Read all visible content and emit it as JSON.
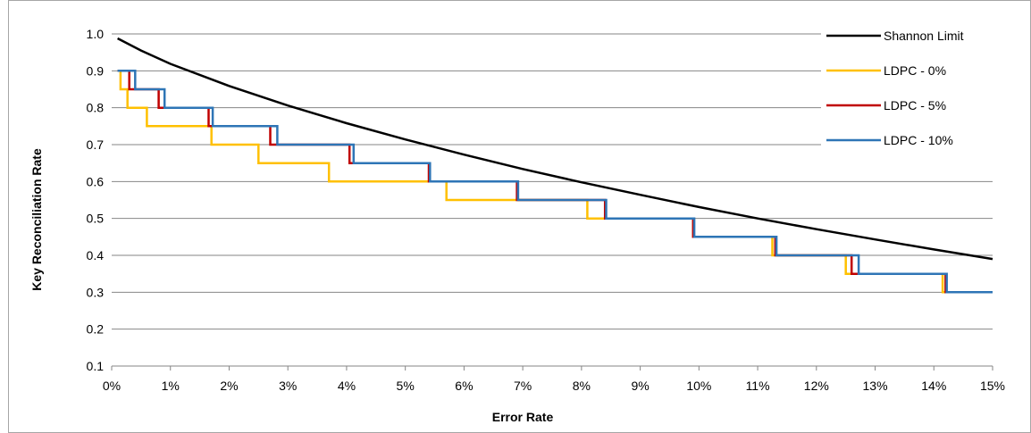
{
  "chart_data": {
    "type": "line",
    "xlabel": "Error Rate",
    "ylabel": "Key Reconciliation Rate",
    "x_ticks": [
      "0%",
      "1%",
      "2%",
      "3%",
      "4%",
      "5%",
      "6%",
      "7%",
      "8%",
      "9%",
      "10%",
      "11%",
      "12%",
      "13%",
      "14%",
      "15%"
    ],
    "y_ticks": [
      "0.1",
      "0.2",
      "0.3",
      "0.4",
      "0.5",
      "0.6",
      "0.7",
      "0.8",
      "0.9",
      "1.0"
    ],
    "xlim": [
      0,
      15
    ],
    "ylim": [
      0.1,
      1.0
    ],
    "x_unit": "percent",
    "grid": "horizontal",
    "legend_position": "top-right",
    "series": [
      {
        "name": "Shannon Limit",
        "color": "#000000",
        "step": false,
        "points": [
          [
            0.1,
            0.988
          ],
          [
            0.5,
            0.955
          ],
          [
            1,
            0.919
          ],
          [
            2,
            0.859
          ],
          [
            3,
            0.806
          ],
          [
            4,
            0.758
          ],
          [
            5,
            0.714
          ],
          [
            6,
            0.673
          ],
          [
            7,
            0.634
          ],
          [
            8,
            0.598
          ],
          [
            9,
            0.564
          ],
          [
            10,
            0.531
          ],
          [
            11,
            0.5
          ],
          [
            12,
            0.471
          ],
          [
            13,
            0.443
          ],
          [
            14,
            0.416
          ],
          [
            15,
            0.39
          ]
        ]
      },
      {
        "name": "LDPC - 0%",
        "color": "#FFC000",
        "step": true,
        "points": [
          [
            0.1,
            0.9
          ],
          [
            0.15,
            0.9
          ],
          [
            0.15,
            0.85
          ],
          [
            0.27,
            0.85
          ],
          [
            0.27,
            0.8
          ],
          [
            0.6,
            0.8
          ],
          [
            0.6,
            0.75
          ],
          [
            1.7,
            0.75
          ],
          [
            1.7,
            0.7
          ],
          [
            2.5,
            0.7
          ],
          [
            2.5,
            0.65
          ],
          [
            3.7,
            0.65
          ],
          [
            3.7,
            0.6
          ],
          [
            5.7,
            0.6
          ],
          [
            5.7,
            0.55
          ],
          [
            8.1,
            0.55
          ],
          [
            8.1,
            0.5
          ],
          [
            9.9,
            0.5
          ],
          [
            9.9,
            0.45
          ],
          [
            11.25,
            0.45
          ],
          [
            11.25,
            0.4
          ],
          [
            12.5,
            0.4
          ],
          [
            12.5,
            0.35
          ],
          [
            14.15,
            0.35
          ],
          [
            14.15,
            0.3
          ],
          [
            15,
            0.3
          ]
        ]
      },
      {
        "name": "LDPC - 5%",
        "color": "#C00000",
        "step": true,
        "points": [
          [
            0.1,
            0.9
          ],
          [
            0.3,
            0.9
          ],
          [
            0.3,
            0.85
          ],
          [
            0.8,
            0.85
          ],
          [
            0.8,
            0.8
          ],
          [
            1.65,
            0.8
          ],
          [
            1.65,
            0.75
          ],
          [
            2.7,
            0.75
          ],
          [
            2.7,
            0.7
          ],
          [
            4.05,
            0.7
          ],
          [
            4.05,
            0.65
          ],
          [
            5.4,
            0.65
          ],
          [
            5.4,
            0.6
          ],
          [
            6.9,
            0.6
          ],
          [
            6.9,
            0.55
          ],
          [
            8.4,
            0.55
          ],
          [
            8.4,
            0.5
          ],
          [
            9.9,
            0.5
          ],
          [
            9.9,
            0.45
          ],
          [
            11.3,
            0.45
          ],
          [
            11.3,
            0.4
          ],
          [
            12.6,
            0.4
          ],
          [
            12.6,
            0.35
          ],
          [
            14.2,
            0.35
          ],
          [
            14.2,
            0.3
          ],
          [
            15,
            0.3
          ]
        ]
      },
      {
        "name": "LDPC - 10%",
        "color": "#2E75B6",
        "step": true,
        "points": [
          [
            0.1,
            0.9
          ],
          [
            0.4,
            0.9
          ],
          [
            0.4,
            0.85
          ],
          [
            0.9,
            0.85
          ],
          [
            0.9,
            0.8
          ],
          [
            1.72,
            0.8
          ],
          [
            1.72,
            0.75
          ],
          [
            2.82,
            0.75
          ],
          [
            2.82,
            0.7
          ],
          [
            4.12,
            0.7
          ],
          [
            4.12,
            0.65
          ],
          [
            5.42,
            0.65
          ],
          [
            5.42,
            0.6
          ],
          [
            6.92,
            0.6
          ],
          [
            6.92,
            0.55
          ],
          [
            8.42,
            0.55
          ],
          [
            8.42,
            0.5
          ],
          [
            9.92,
            0.5
          ],
          [
            9.92,
            0.45
          ],
          [
            11.32,
            0.45
          ],
          [
            11.32,
            0.4
          ],
          [
            12.72,
            0.4
          ],
          [
            12.72,
            0.35
          ],
          [
            14.22,
            0.35
          ],
          [
            14.22,
            0.3
          ],
          [
            15,
            0.3
          ]
        ]
      }
    ]
  }
}
